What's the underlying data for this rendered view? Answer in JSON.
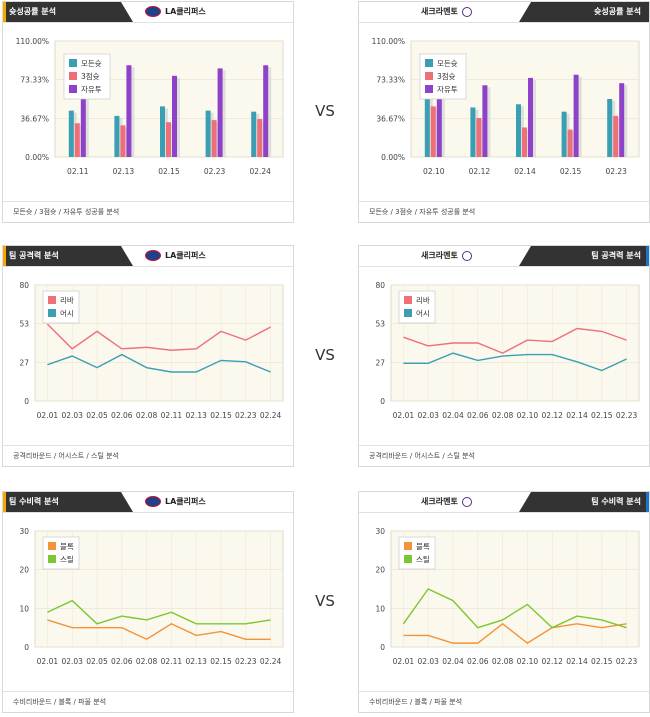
{
  "vs_label": "VS",
  "colors": {
    "teal": "#3a9fb3",
    "pink": "#ef6f78",
    "purple": "#8e42c9",
    "orange": "#f4923a",
    "green": "#7cc72f",
    "plot_bg": "#fbf8ee"
  },
  "shoot": {
    "header_title": "슛성공률 분석",
    "left_team": "LA클리퍼스",
    "right_team": "새크라멘토",
    "footer": "모든슛 / 3점슛 / 자유투 성공률 분석",
    "series_names": [
      "모든슛",
      "3점슛",
      "자유투"
    ]
  },
  "attack": {
    "header_title": "팀 공격력 분석",
    "left_team": "LA클리퍼스",
    "right_team": "새크라멘토",
    "footer": "공격리바운드 / 어시스트 / 스틸 분석",
    "series_names": [
      "리바",
      "어시"
    ]
  },
  "defense": {
    "header_title": "팀 수비력 분석",
    "left_team": "LA클리퍼스",
    "right_team": "새크라멘토",
    "footer": "수비리바운드 / 블록 / 파울 분석",
    "series_names": [
      "블록",
      "스틸"
    ]
  },
  "chart_data": [
    {
      "id": "shoot_left",
      "type": "bar",
      "categories": [
        "02.11",
        "02.13",
        "02.15",
        "02.23",
        "02.24"
      ],
      "yticks": [
        "0.00%",
        "36.67%",
        "73.33%",
        "110.00%"
      ],
      "ylim": [
        0,
        110
      ],
      "series": [
        {
          "name": "모든슛",
          "values": [
            44,
            39,
            48,
            44,
            43
          ]
        },
        {
          "name": "3점슛",
          "values": [
            32,
            30,
            33,
            35,
            36
          ]
        },
        {
          "name": "자유투",
          "values": [
            62,
            87,
            77,
            84,
            87
          ]
        }
      ]
    },
    {
      "id": "shoot_right",
      "type": "bar",
      "categories": [
        "02.10",
        "02.12",
        "02.14",
        "02.15",
        "02.23"
      ],
      "yticks": [
        "0.00%",
        "36.67%",
        "73.33%",
        "110.00%"
      ],
      "ylim": [
        0,
        110
      ],
      "series": [
        {
          "name": "모든슛",
          "values": [
            58,
            47,
            50,
            43,
            55
          ]
        },
        {
          "name": "3점슛",
          "values": [
            48,
            37,
            28,
            26,
            39
          ]
        },
        {
          "name": "자유투",
          "values": [
            62,
            68,
            75,
            78,
            70
          ]
        }
      ]
    },
    {
      "id": "attack_left",
      "type": "line",
      "categories": [
        "02.01",
        "02.03",
        "02.05",
        "02.06",
        "02.08",
        "02.11",
        "02.13",
        "02.15",
        "02.23",
        "02.24"
      ],
      "yticks": [
        "0",
        "27",
        "53",
        "80"
      ],
      "ylim": [
        0,
        80
      ],
      "series": [
        {
          "name": "리바",
          "values": [
            53,
            36,
            48,
            36,
            37,
            35,
            36,
            48,
            42,
            51
          ]
        },
        {
          "name": "어시",
          "values": [
            25,
            31,
            23,
            32,
            23,
            20,
            20,
            28,
            27,
            20
          ]
        }
      ]
    },
    {
      "id": "attack_right",
      "type": "line",
      "categories": [
        "02.01",
        "02.03",
        "02.04",
        "02.06",
        "02.08",
        "02.10",
        "02.12",
        "02.14",
        "02.15",
        "02.23"
      ],
      "yticks": [
        "0",
        "27",
        "53",
        "80"
      ],
      "ylim": [
        0,
        80
      ],
      "series": [
        {
          "name": "리바",
          "values": [
            44,
            38,
            40,
            40,
            33,
            42,
            41,
            50,
            48,
            42
          ]
        },
        {
          "name": "어시",
          "values": [
            26,
            26,
            33,
            28,
            31,
            32,
            32,
            27,
            21,
            29
          ]
        }
      ]
    },
    {
      "id": "defense_left",
      "type": "line",
      "categories": [
        "02.01",
        "02.03",
        "02.05",
        "02.06",
        "02.08",
        "02.11",
        "02.13",
        "02.15",
        "02.23",
        "02.24"
      ],
      "yticks": [
        "0",
        "10",
        "20",
        "30"
      ],
      "ylim": [
        0,
        30
      ],
      "series": [
        {
          "name": "블록",
          "values": [
            7,
            5,
            5,
            5,
            2,
            6,
            3,
            4,
            2,
            2
          ]
        },
        {
          "name": "스틸",
          "values": [
            9,
            12,
            6,
            8,
            7,
            9,
            6,
            6,
            6,
            7
          ]
        }
      ]
    },
    {
      "id": "defense_right",
      "type": "line",
      "categories": [
        "02.01",
        "02.03",
        "02.04",
        "02.06",
        "02.08",
        "02.10",
        "02.12",
        "02.14",
        "02.15",
        "02.23"
      ],
      "yticks": [
        "0",
        "10",
        "20",
        "30"
      ],
      "ylim": [
        0,
        30
      ],
      "series": [
        {
          "name": "블록",
          "values": [
            3,
            3,
            1,
            1,
            6,
            1,
            5,
            6,
            5,
            6
          ]
        },
        {
          "name": "스틸",
          "values": [
            6,
            15,
            12,
            5,
            7,
            11,
            5,
            8,
            7,
            5
          ]
        }
      ]
    }
  ]
}
